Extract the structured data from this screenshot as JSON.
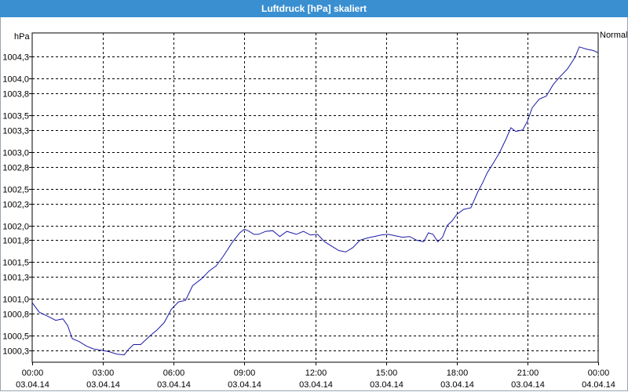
{
  "window": {
    "title": "Luftdruck [hPa] skaliert"
  },
  "chart_data": {
    "type": "line",
    "title": "Luftdruck [hPa] skaliert",
    "ylabel": "hPa",
    "legend_label": "Normal",
    "ylim": [
      1000.14,
      1004.62
    ],
    "yticks": [
      1000.3,
      1000.5,
      1000.8,
      1001.0,
      1001.3,
      1001.5,
      1001.8,
      1002.0,
      1002.3,
      1002.5,
      1002.8,
      1003.0,
      1003.3,
      1003.5,
      1003.8,
      1004.0,
      1004.3
    ],
    "ytick_labels": [
      "1000,3",
      "1000,5",
      "1000,8",
      "1001,0",
      "1001,3",
      "1001,5",
      "1001,8",
      "1002,0",
      "1002,3",
      "1002,5",
      "1002,8",
      "1003,0",
      "1003,3",
      "1003,5",
      "1003,8",
      "1004,0",
      "1004,3"
    ],
    "x_hours": [
      0,
      3,
      6,
      9,
      12,
      15,
      18,
      21,
      24
    ],
    "xtick_times": [
      "00:00",
      "03:00",
      "06:00",
      "09:00",
      "12:00",
      "15:00",
      "18:00",
      "21:00",
      "00:00"
    ],
    "xtick_dates": [
      "03.04.14",
      "03.04.14",
      "03.04.14",
      "03.04.14",
      "03.04.14",
      "03.04.14",
      "03.04.14",
      "03.04.14",
      "04.04.14"
    ],
    "grid": true,
    "series": [
      {
        "color": "#1a1aa8",
        "x": [
          0,
          0.3,
          0.7,
          1.0,
          1.3,
          1.5,
          1.7,
          2.0,
          2.3,
          2.6,
          3.0,
          3.3,
          3.6,
          3.9,
          4.1,
          4.3,
          4.6,
          5.0,
          5.3,
          5.6,
          5.9,
          6.2,
          6.5,
          6.8,
          7.2,
          7.5,
          7.8,
          8.1,
          8.5,
          8.8,
          9.0,
          9.2,
          9.4,
          9.6,
          9.9,
          10.2,
          10.5,
          10.8,
          11.2,
          11.5,
          11.8,
          12.1,
          12.4,
          12.7,
          13.0,
          13.3,
          13.6,
          13.9,
          14.2,
          14.5,
          14.8,
          15.1,
          15.4,
          15.7,
          16.0,
          16.3,
          16.6,
          16.8,
          17.0,
          17.2,
          17.4,
          17.6,
          17.8,
          18.0,
          18.3,
          18.6,
          18.9,
          19.1,
          19.3,
          19.5,
          19.8,
          20.1,
          20.3,
          20.5,
          20.8,
          21.0,
          21.2,
          21.5,
          21.8,
          22.1,
          22.4,
          22.7,
          23.0,
          23.2,
          23.5,
          23.8,
          24.0
        ],
        "y": [
          1000.95,
          1000.82,
          1000.76,
          1000.71,
          1000.73,
          1000.64,
          1000.46,
          1000.42,
          1000.36,
          1000.32,
          1000.3,
          1000.28,
          1000.25,
          1000.24,
          1000.32,
          1000.38,
          1000.38,
          1000.5,
          1000.58,
          1000.68,
          1000.86,
          1000.96,
          1000.98,
          1001.18,
          1001.28,
          1001.38,
          1001.45,
          1001.58,
          1001.78,
          1001.9,
          1001.95,
          1001.92,
          1001.88,
          1001.88,
          1001.92,
          1001.93,
          1001.85,
          1001.92,
          1001.88,
          1001.92,
          1001.87,
          1001.88,
          1001.78,
          1001.72,
          1001.66,
          1001.64,
          1001.7,
          1001.8,
          1001.83,
          1001.85,
          1001.87,
          1001.88,
          1001.86,
          1001.84,
          1001.85,
          1001.8,
          1001.78,
          1001.9,
          1001.88,
          1001.78,
          1001.84,
          1002.0,
          1002.06,
          1002.15,
          1002.22,
          1002.24,
          1002.46,
          1002.58,
          1002.72,
          1002.82,
          1002.98,
          1003.18,
          1003.33,
          1003.28,
          1003.3,
          1003.42,
          1003.6,
          1003.72,
          1003.76,
          1003.92,
          1004.03,
          1004.13,
          1004.28,
          1004.43,
          1004.4,
          1004.38,
          1004.35
        ]
      }
    ]
  }
}
